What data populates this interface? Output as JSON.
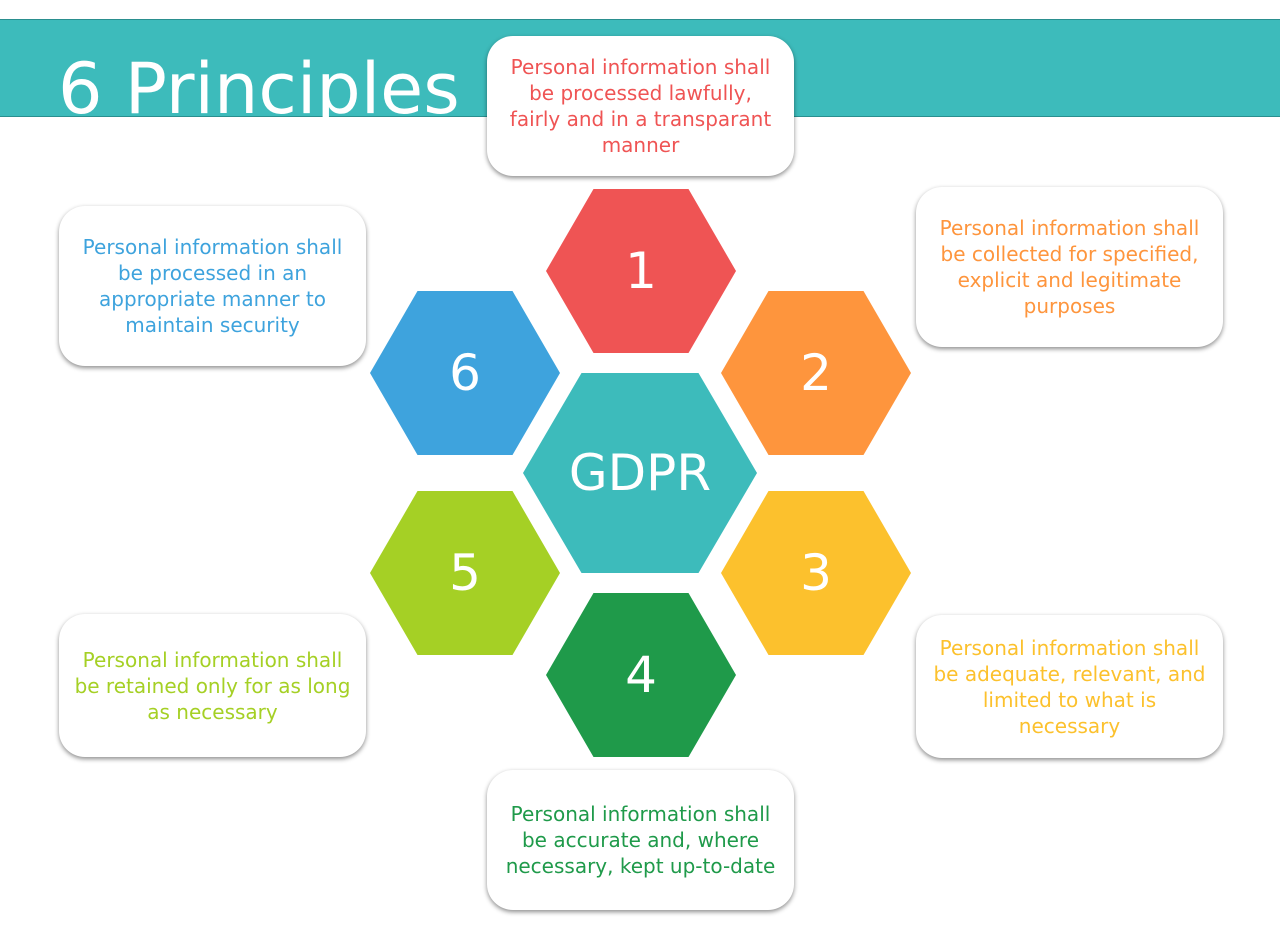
{
  "title": "6 Principles",
  "center": {
    "label": "GDPR",
    "color": "#3dbbbb"
  },
  "principles": [
    {
      "number": "1",
      "color": "#ef5454",
      "text": "Personal information shall be processed lawfully, fairly and in a transparant manner"
    },
    {
      "number": "2",
      "color": "#fe953d",
      "text": "Personal information shall be collected for specified, explicit and legitimate purposes"
    },
    {
      "number": "3",
      "color": "#fcc12d",
      "text": "Personal information shall be adequate, relevant, and limited to what is necessary"
    },
    {
      "number": "4",
      "color": "#1f9a4a",
      "text": "Personal information shall be accurate and, where necessary, kept up-to-date"
    },
    {
      "number": "5",
      "color": "#a5d025",
      "text": "Personal information shall be retained only for as long as necessary"
    },
    {
      "number": "6",
      "color": "#3ea3dd",
      "text": "Personal information shall be processed in an appropriate manner to maintain security"
    }
  ]
}
